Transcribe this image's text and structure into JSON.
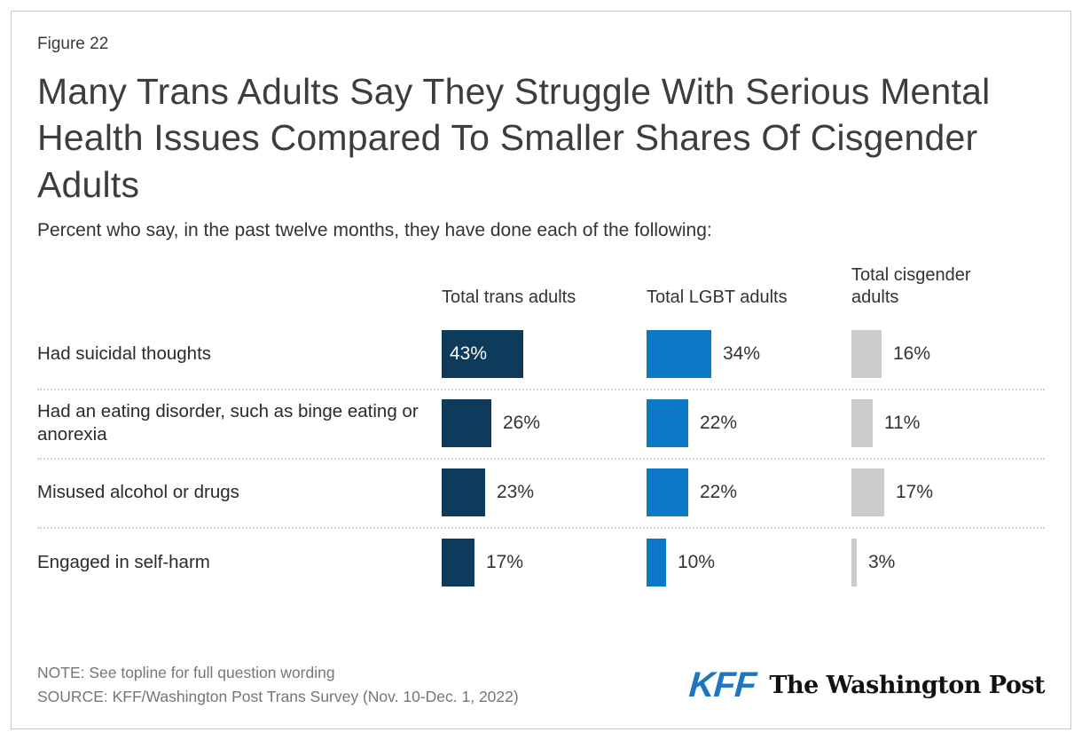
{
  "figure_label": "Figure 22",
  "title": "Many Trans Adults Say They Struggle With Serious Mental Health Issues Compared To Smaller Shares Of Cisgender Adults",
  "subtitle": "Percent who say, in the past twelve months, they have done each of the following:",
  "note": "NOTE: See topline for full question wording",
  "source": "SOURCE: KFF/Washington Post Trans Survey (Nov. 10-Dec. 1, 2022)",
  "logos": {
    "kff": "KFF",
    "washington_post": "The Washington Post"
  },
  "colors": {
    "trans_bar": "#0e3a5c",
    "lgbt_bar": "#0b79c6",
    "cisgender_bar": "#cccccc",
    "kff_blue": "#1d76c2",
    "divider": "#d4d4d4"
  },
  "chart_data": {
    "type": "bar",
    "orientation": "horizontal",
    "unit": "%",
    "xlim": [
      0,
      100
    ],
    "value_labels": "on",
    "grid": "off",
    "categories": [
      "Had suicidal thoughts",
      "Had an eating disorder, such as binge eating or anorexia",
      "Misused alcohol or drugs",
      "Engaged in self-harm"
    ],
    "series": [
      {
        "name": "Total trans adults",
        "color": "#0e3a5c",
        "values": [
          43,
          26,
          23,
          17
        ]
      },
      {
        "name": "Total LGBT adults",
        "color": "#0b79c6",
        "values": [
          34,
          22,
          22,
          10
        ]
      },
      {
        "name": "Total cisgender adults",
        "color": "#cccccc",
        "values": [
          16,
          11,
          17,
          3
        ]
      }
    ]
  }
}
